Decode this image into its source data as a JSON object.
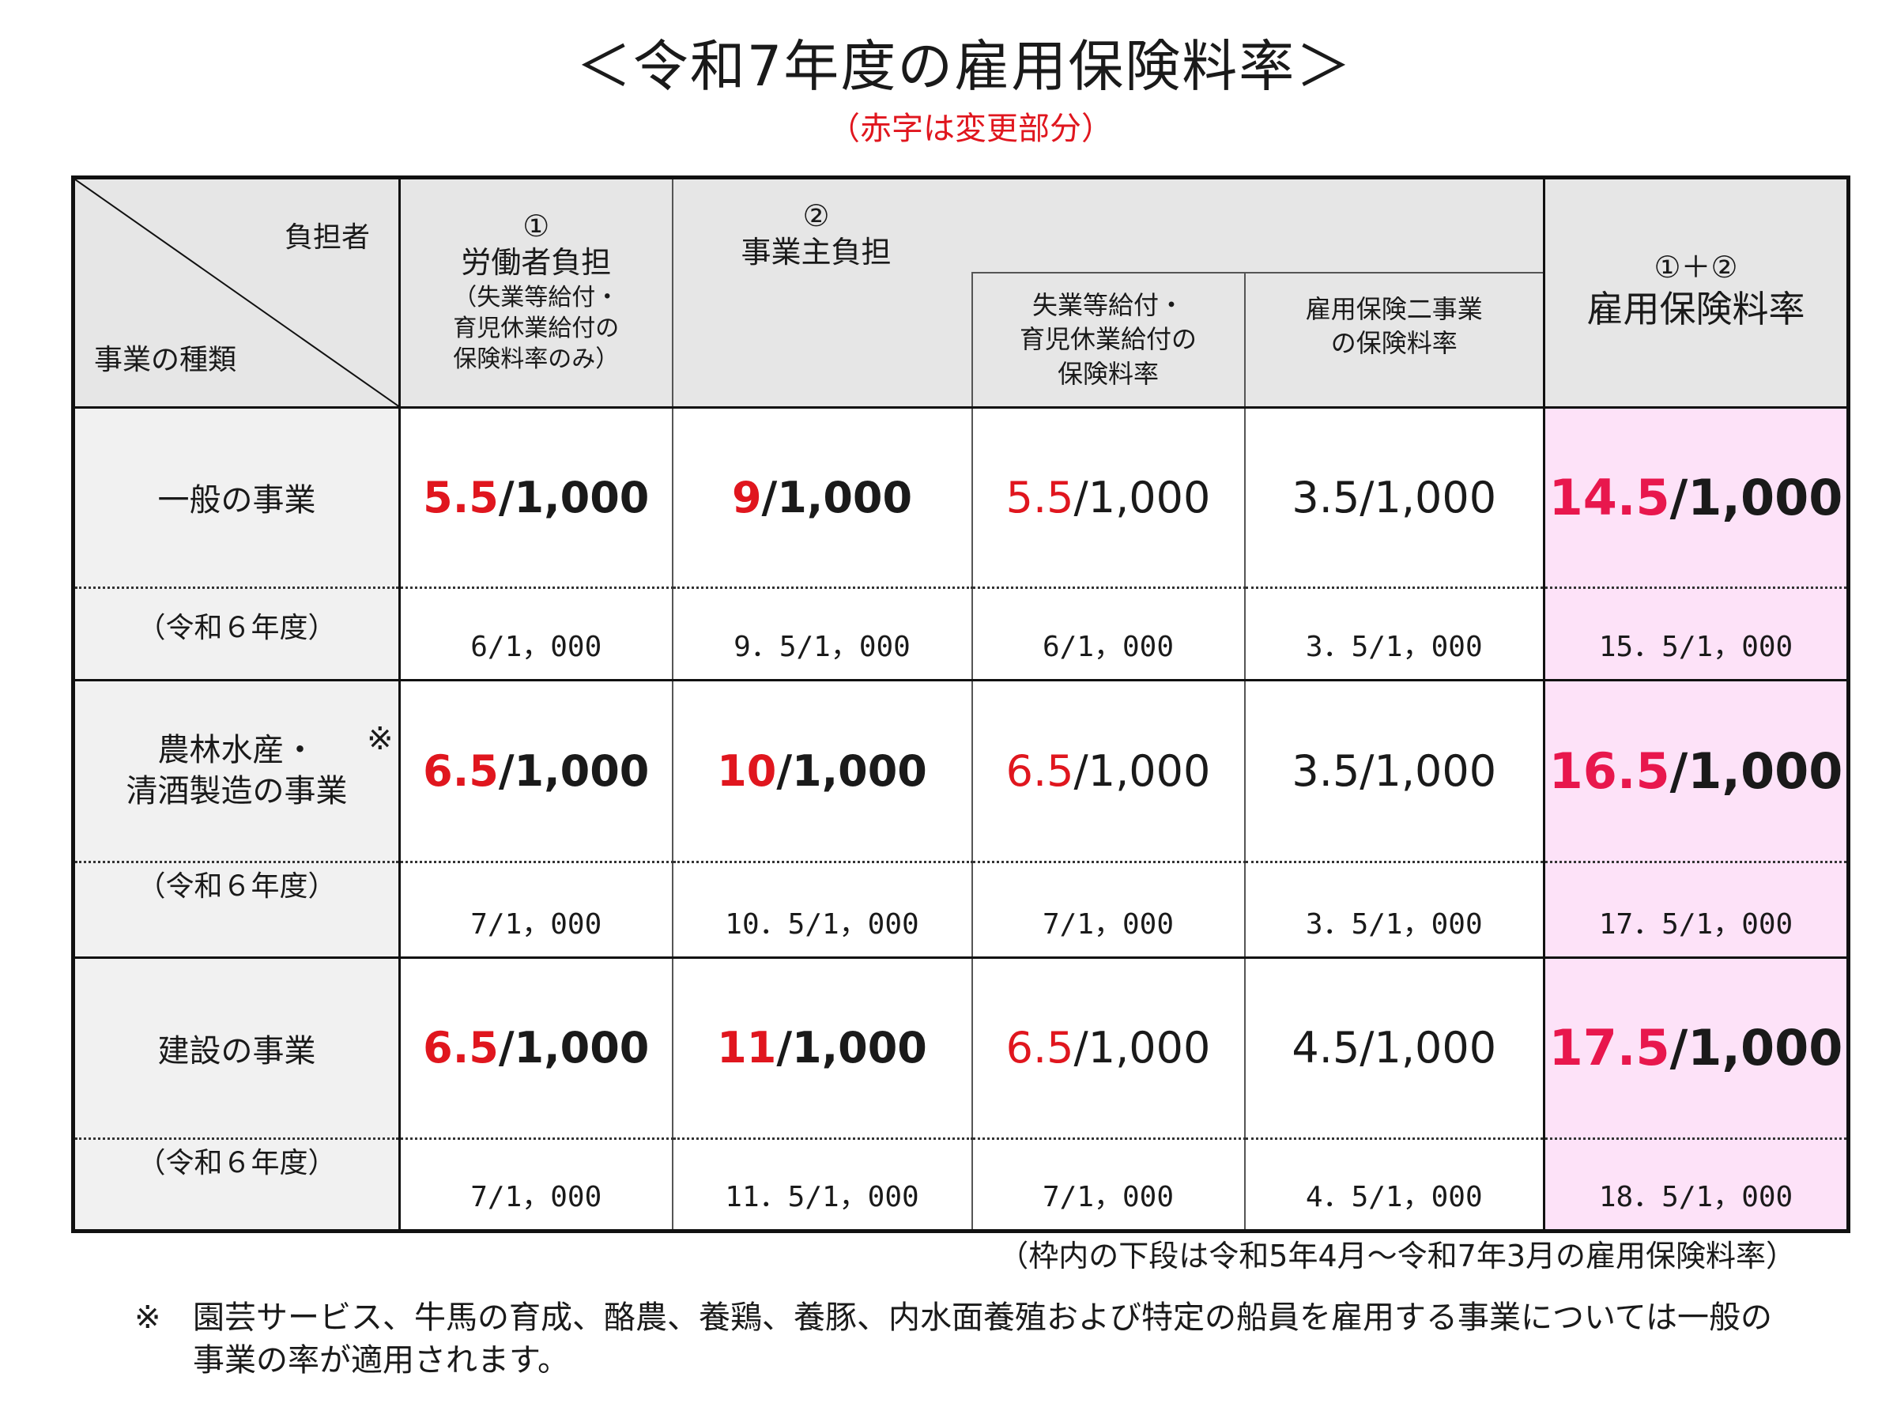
{
  "title": "＜令和7年度の雇用保険料率＞",
  "subtitle": "（赤字は変更部分）",
  "header": {
    "corner_top": "負担者",
    "corner_bottom": "事業の種類",
    "worker": {
      "circle": "①",
      "label": "労働者負担",
      "note_lines": [
        "（失業等給付・",
        "育児休業給付の",
        "保険料率のみ）"
      ]
    },
    "employer": {
      "circle": "②",
      "label": "事業主負担",
      "sub1_lines": [
        "失業等給付・",
        "育児休業給付の",
        "保険料率"
      ],
      "sub2_lines": [
        "雇用保険二事業",
        "の保険料率"
      ]
    },
    "total": {
      "circle": "①＋②",
      "label": "雇用保険料率"
    }
  },
  "rows": [
    {
      "label_lines": [
        "一般の事業"
      ],
      "note_mark": "",
      "worker": {
        "changed": "5.5",
        "denom": "/1,000"
      },
      "employer": {
        "changed": "9",
        "denom": "/1,000"
      },
      "sub1": {
        "changed": "5.5",
        "denom": "/1,000"
      },
      "sub2": "3.5/1,000",
      "total": {
        "changed": "14.5",
        "denom": "/1,000"
      },
      "prev": {
        "label": "（令和６年度）",
        "worker": "6/1，000",
        "employer": "9．5/1，000",
        "sub1": "6/1，000",
        "sub2": "3．5/1，000",
        "total": "15．5/1，000"
      }
    },
    {
      "label_lines": [
        "農林水産・",
        "清酒製造の事業"
      ],
      "note_mark": "※",
      "worker": {
        "changed": "6.5",
        "denom": "/1,000"
      },
      "employer": {
        "changed": "10",
        "denom": "/1,000"
      },
      "sub1": {
        "changed": "6.5",
        "denom": "/1,000"
      },
      "sub2": "3.5/1,000",
      "total": {
        "changed": "16.5",
        "denom": "/1,000"
      },
      "prev": {
        "label": "（令和６年度）",
        "worker": "7/1，000",
        "employer": "10．5/1，000",
        "sub1": "7/1，000",
        "sub2": "3．5/1，000",
        "total": "17．5/1，000"
      }
    },
    {
      "label_lines": [
        "建設の事業"
      ],
      "note_mark": "",
      "worker": {
        "changed": "6.5",
        "denom": "/1,000"
      },
      "employer": {
        "changed": "11",
        "denom": "/1,000"
      },
      "sub1": {
        "changed": "6.5",
        "denom": "/1,000"
      },
      "sub2": "4.5/1,000",
      "total": {
        "changed": "17.5",
        "denom": "/1,000"
      },
      "prev": {
        "label": "（令和６年度）",
        "worker": "7/1，000",
        "employer": "11．5/1，000",
        "sub1": "7/1，000",
        "sub2": "4．5/1，000",
        "total": "18．5/1，000"
      }
    }
  ],
  "footer": {
    "period_note": "（枠内の下段は令和5年4月～令和7年3月の雇用保険料率）",
    "note_mark": "※",
    "note_text": "園芸サービス、牛馬の育成、酪農、養鶏、養豚、内水面養殖および特定の船員を雇用する事業については一般の事業の率が適用されます。"
  },
  "colors": {
    "changed_text": "#e0161e",
    "total_changed_text": "#e8174d",
    "header_bg": "#e6e6e6",
    "total_column_bg": "#fde2f8"
  }
}
